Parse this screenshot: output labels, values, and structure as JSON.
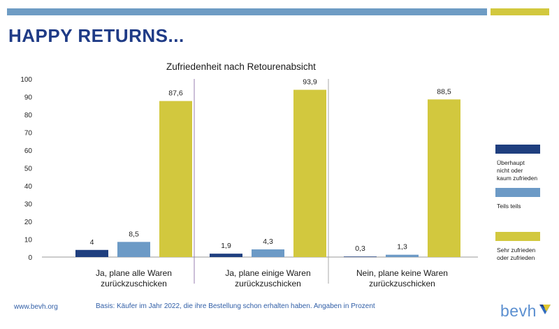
{
  "header": {
    "title": "HAPPY RETURNS..."
  },
  "colors": {
    "top_bar_blue": "#6e9cc4",
    "top_bar_yellow": "#d2c83e",
    "headline": "#1f3b86",
    "footer": "#2f5da6",
    "logo": "#5b8fd0"
  },
  "chart_data": {
    "type": "bar",
    "title": "Zufriedenheit nach Retourenabsicht",
    "categories": [
      [
        "Ja, plane alle Waren",
        "zurückzuschicken"
      ],
      [
        "Ja, plane einige Waren",
        "zurückzuschicken"
      ],
      [
        "Nein, plane keine Waren",
        "zurückzuschicken"
      ]
    ],
    "series": [
      {
        "name": "Überhaupt nicht oder kaum zufrieden",
        "legend_lines": [
          "Überhaupt",
          "nicht oder",
          "kaum zufrieden"
        ],
        "color": "#1f3f7f",
        "values": [
          4,
          1.9,
          0.3
        ],
        "labels": [
          "4",
          "1,9",
          "0,3"
        ]
      },
      {
        "name": "Teils teils",
        "legend_lines": [
          "Teils teils"
        ],
        "color": "#6c9ac6",
        "values": [
          8.5,
          4.3,
          1.3
        ],
        "labels": [
          "8,5",
          "4,3",
          "1,3"
        ]
      },
      {
        "name": "Sehr zufrieden oder zufrieden",
        "legend_lines": [
          "Sehr zufrieden",
          "oder zufrieden"
        ],
        "color": "#d2c83e",
        "values": [
          87.6,
          93.9,
          88.5
        ],
        "labels": [
          "87,6",
          "93,9",
          "88,5"
        ]
      }
    ],
    "yticks": [
      "0",
      "10",
      "20",
      "30",
      "40",
      "50",
      "60",
      "70",
      "80",
      "90",
      "100"
    ],
    "ylim": [
      0,
      100
    ],
    "grid": false,
    "legend_position": "right"
  },
  "footer": {
    "website": "www.bevh.org",
    "basis": "Basis: Käufer im Jahr 2022, die ihre Bestellung schon erhalten haben. Angaben in Prozent"
  },
  "logo": {
    "text": "bevh",
    "icon": "bevh-logo-mark-icon"
  }
}
